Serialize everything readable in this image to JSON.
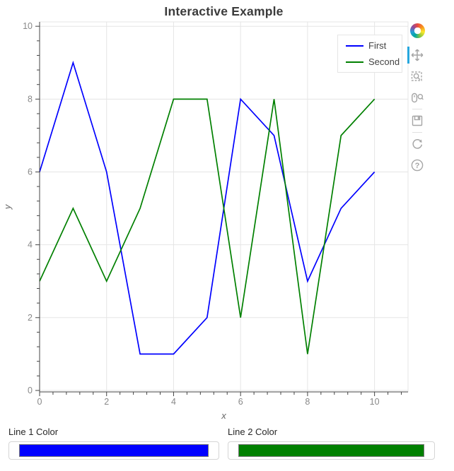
{
  "chart_data": {
    "type": "line",
    "title": "Interactive Example",
    "xlabel": "x",
    "ylabel": "y",
    "x": [
      0,
      1,
      2,
      3,
      4,
      5,
      6,
      7,
      8,
      9,
      10
    ],
    "series": [
      {
        "name": "First",
        "color": "#0000ff",
        "values": [
          6,
          9,
          6,
          1,
          1,
          2,
          8,
          7,
          3,
          5,
          6
        ]
      },
      {
        "name": "Second",
        "color": "#008000",
        "values": [
          3,
          5,
          3,
          5,
          8,
          8,
          2,
          8,
          1,
          7,
          8
        ]
      }
    ],
    "xlim": [
      0,
      11
    ],
    "ylim": [
      -0.04,
      10.12
    ],
    "xticks": [
      0,
      2,
      4,
      6,
      8,
      10
    ],
    "yticks": [
      0,
      2,
      4,
      6,
      8,
      10
    ],
    "minor_tick_step": 0.4,
    "grid": true,
    "grid_color": "#e5e5e5",
    "axis_color": "#444444",
    "tick_label_color": "#898989",
    "axis_label_color": "#656565",
    "legend_position": "top_right"
  },
  "toolbar": {
    "active_color": "#26a7de",
    "help_glyph": "?",
    "tools": [
      {
        "id": "pan",
        "active": true
      },
      {
        "id": "box-zoom",
        "active": false
      },
      {
        "id": "wheel-zoom",
        "active": false
      },
      {
        "id": "save",
        "active": false
      },
      {
        "id": "reset",
        "active": false
      },
      {
        "id": "help",
        "active": false
      }
    ]
  },
  "widgets": [
    {
      "label": "Line 1 Color",
      "value": "#0000ff"
    },
    {
      "label": "Line 2 Color",
      "value": "#008000"
    }
  ]
}
